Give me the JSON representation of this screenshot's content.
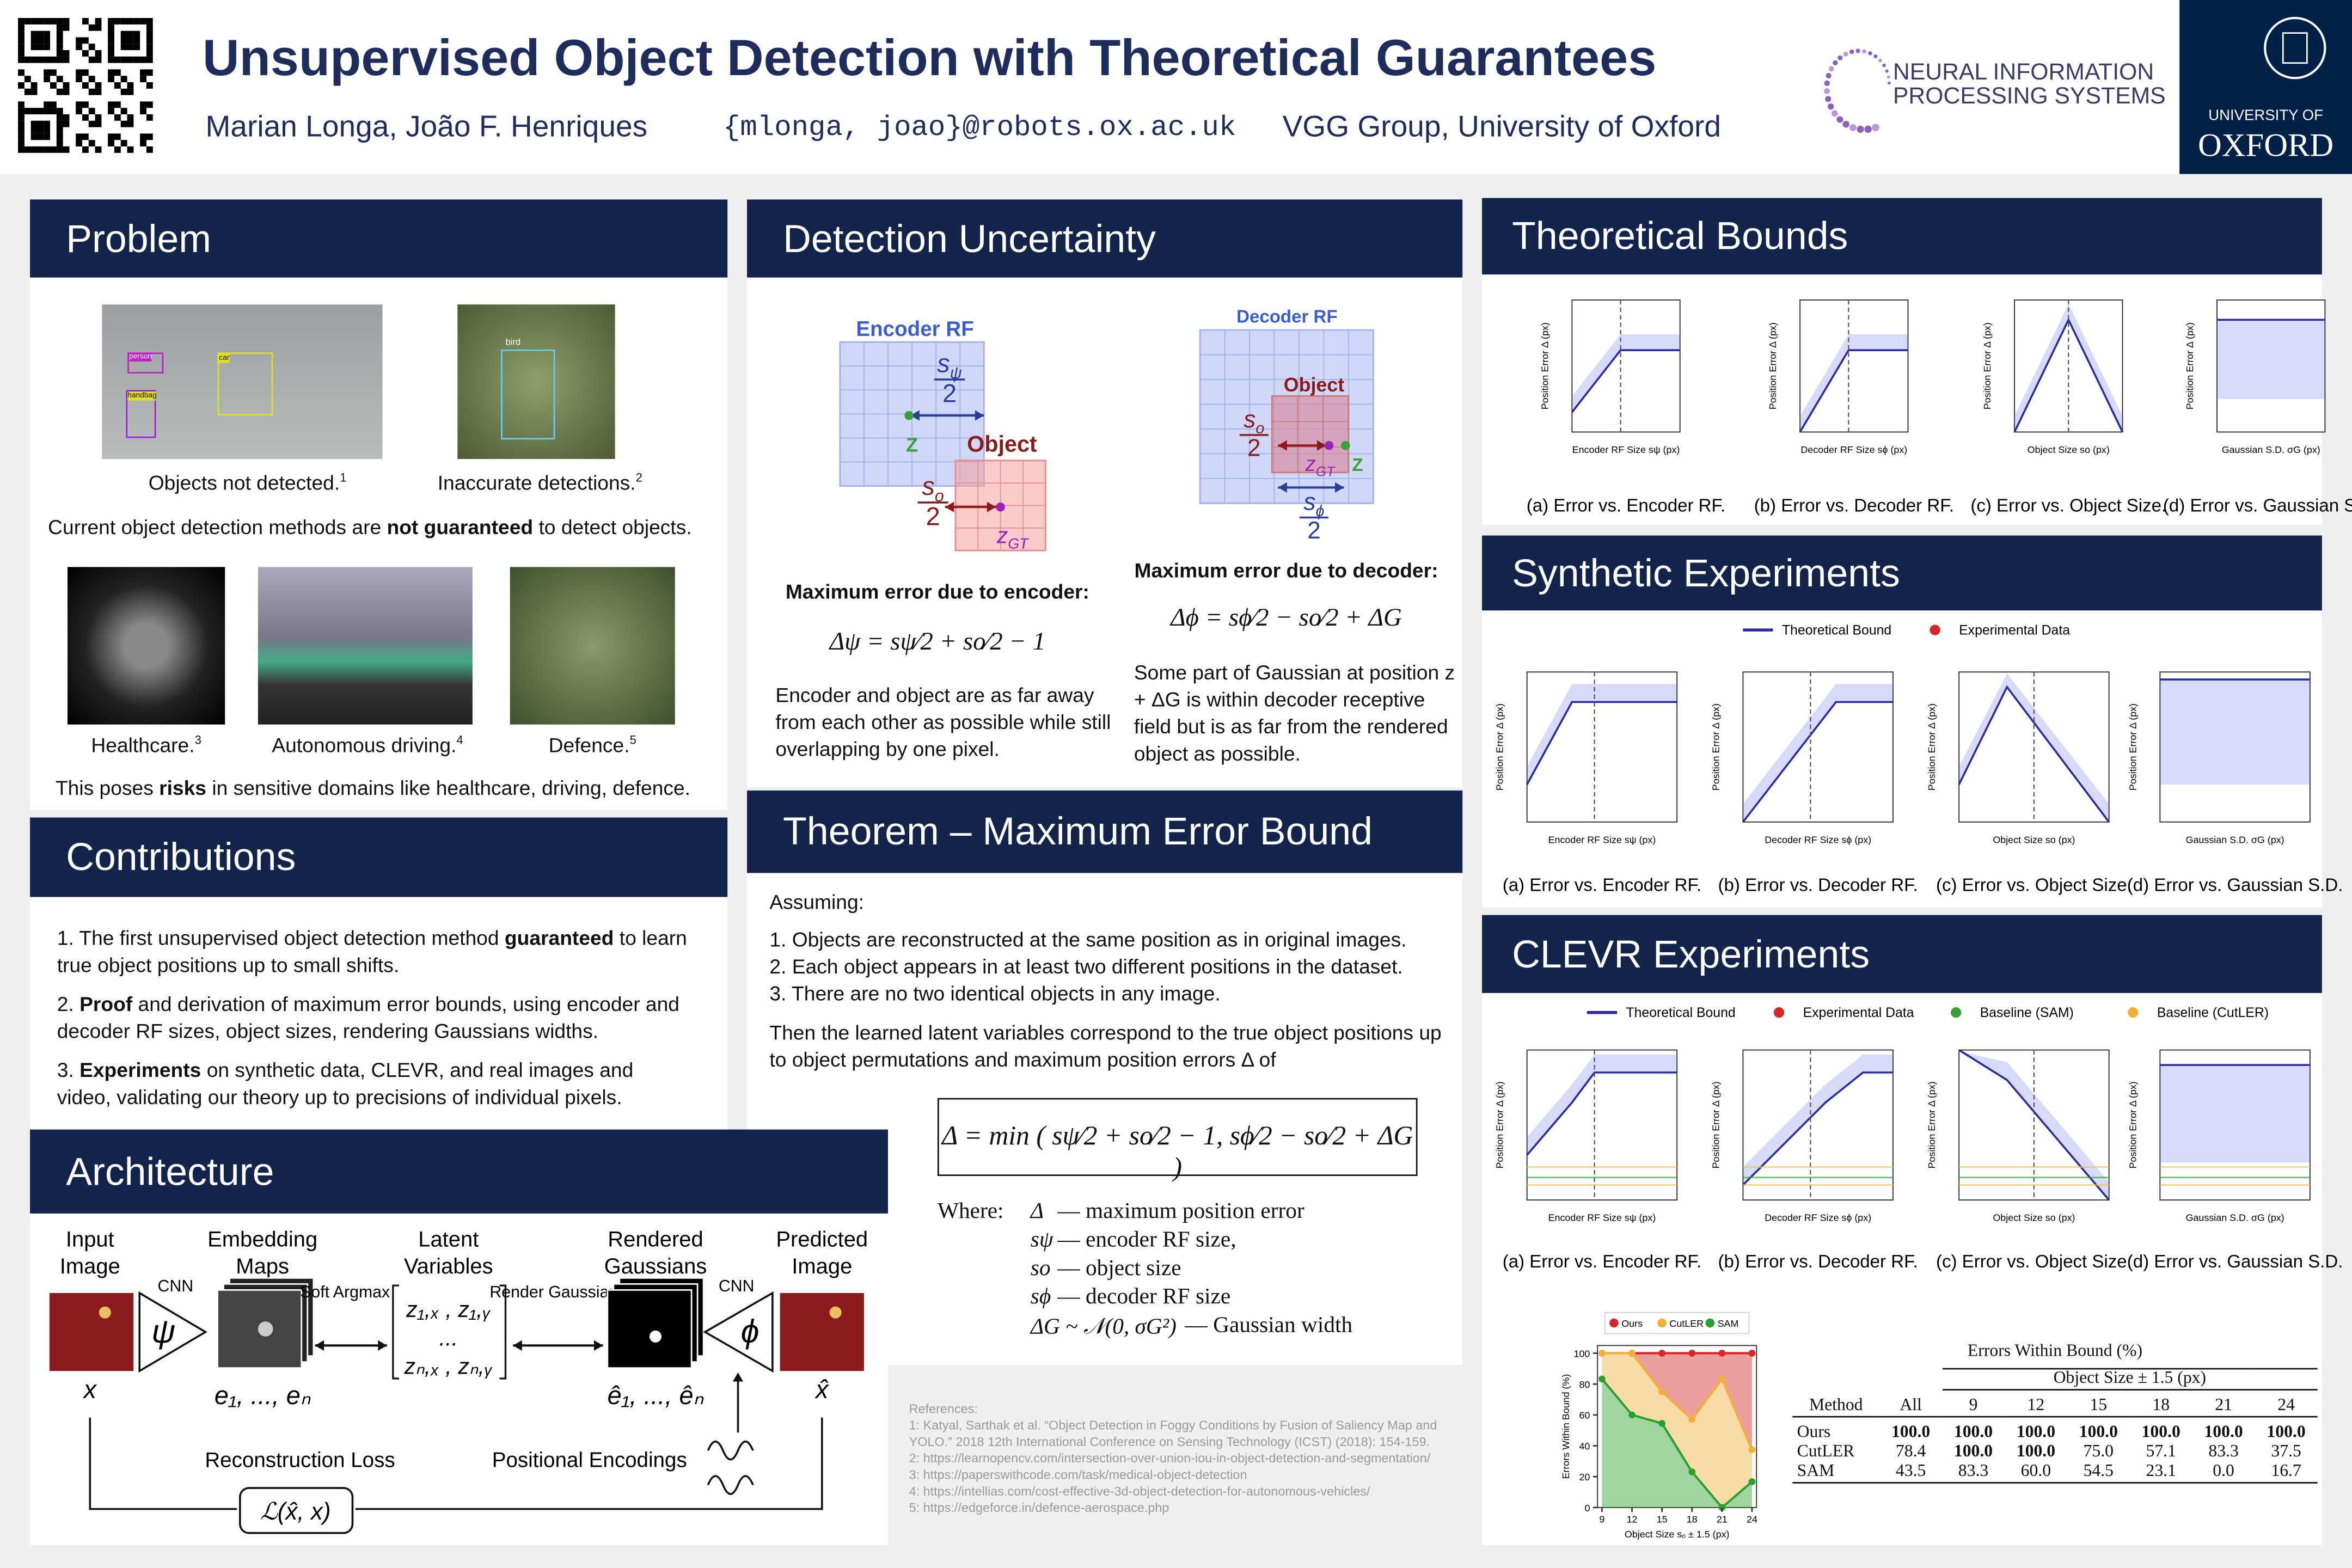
{
  "header": {
    "title": "Unsupervised Object Detection with Theoretical Guarantees",
    "authors": "Marian Longa, João F. Henriques",
    "email": "{mlonga, joao}@robots.ox.ac.uk",
    "affiliation": "VGG Group, University of Oxford",
    "neurips": [
      "NEURAL INFORMATION",
      "PROCESSING SYSTEMS"
    ],
    "oxford": [
      "UNIVERSITY OF",
      "OXFORD"
    ]
  },
  "problem": {
    "heading": "Problem",
    "figures": [
      {
        "caption": "Objects not detected.",
        "ref": "1"
      },
      {
        "caption": "Inaccurate detections.",
        "ref": "2"
      }
    ],
    "labels": [
      "person",
      "car",
      "handbag",
      "bird"
    ],
    "statement": [
      "Current object detection methods are ",
      "not guaranteed",
      " to detect objects."
    ],
    "domains": [
      {
        "caption": "Healthcare.",
        "ref": "3"
      },
      {
        "caption": "Autonomous driving.",
        "ref": "4"
      },
      {
        "caption": "Defence.",
        "ref": "5"
      }
    ],
    "risk": [
      "This poses ",
      "risks",
      " in sensitive domains like healthcare, driving, defence."
    ]
  },
  "contributions": {
    "heading": "Contributions",
    "items": [
      [
        "1. The first unsupervised object detection method ",
        "guaranteed",
        " to learn true object positions up to small shifts."
      ],
      [
        "2. ",
        "Proof",
        " and derivation of maximum error bounds, using encoder and decoder RF sizes, object sizes, rendering Gaussians widths."
      ],
      [
        "3. ",
        "Experiments",
        " on synthetic data, CLEVR, and real images and video, validating our theory up to precisions of individual pixels."
      ]
    ]
  },
  "architecture": {
    "heading": "Architecture",
    "stages": [
      "Input Image",
      "Embedding Maps",
      "Latent Variables",
      "Rendered Gaussians",
      "Predicted Image"
    ],
    "arrows": [
      "CNN",
      "Soft Argmax",
      "Render Gaussians",
      "CNN"
    ],
    "symbols": [
      "x",
      "e₁, ..., eₙ",
      "ê₁, ..., êₙ",
      "x̂"
    ],
    "latent": [
      "z₁,ₓ , z₁,ᵧ",
      "...",
      "zₙ,ₓ , zₙ,ᵧ"
    ],
    "encoder": "ψ",
    "decoder": "ϕ",
    "loss_label": "Reconstruction Loss",
    "pos_enc": "Positional Encodings",
    "loss": "ℒ(x̂, x)"
  },
  "detection": {
    "heading": "Detection Uncertainty",
    "encoder_fig": {
      "title": "Encoder RF",
      "rf": {
        "base": "s",
        "sub": "ψ",
        "den": "2"
      },
      "z": "Z",
      "object": "Object",
      "obj": {
        "base": "s",
        "sub": "o",
        "den": "2"
      },
      "zgt": {
        "base": "z",
        "sub": "GT"
      }
    },
    "decoder_fig": {
      "title": "Decoder RF",
      "rf": {
        "base": "s",
        "sub": "ϕ",
        "den": "2"
      },
      "z": "Z",
      "object": "Object",
      "obj": {
        "base": "s",
        "sub": "o",
        "den": "2"
      },
      "zgt": {
        "base": "z",
        "sub": "GT"
      }
    },
    "encoder_title": "Maximum error due to encoder:",
    "encoder_formula": "Δψ = sψ⁄2 + so⁄2 − 1",
    "encoder_text": "Encoder and object are as far away from each other as possible while still overlapping by one pixel.",
    "decoder_title": "Maximum error due to decoder:",
    "decoder_formula": "Δϕ = sϕ⁄2 − so⁄2 + ΔG",
    "decoder_text": "Some part of Gaussian at position z + ΔG is within decoder receptive field but is as far from the rendered object as possible."
  },
  "theorem": {
    "heading": "Theorem – Maximum Error Bound",
    "assuming": "Assuming:",
    "assumptions": [
      "1. Objects are reconstructed at the same position as in original images.",
      "2. Each object appears in at least two different positions in the dataset.",
      "3. There are no two identical objects in any image."
    ],
    "conclusion": "Then the learned latent variables correspond to the true object positions up to object permutations and maximum position errors Δ of",
    "formula": "Δ = min ( sψ⁄2 + so⁄2 − 1,  sϕ⁄2 − so⁄2 + ΔG )",
    "where": "Where:",
    "symbols": [
      [
        "Δ",
        "— maximum position error"
      ],
      [
        "sψ",
        "— encoder RF size,"
      ],
      [
        "so",
        "— object size"
      ],
      [
        "sϕ",
        "— decoder RF size"
      ],
      [
        "ΔG ~ 𝒩(0, σG²)",
        "— Gaussian width"
      ]
    ]
  },
  "references": [
    "References:",
    "1: Katyal, Sarthak et al. “Object Detection in Foggy Conditions by Fusion of Saliency Map and YOLO.” 2018 12th International Conference on Sensing Technology (ICST) (2018): 154-159.",
    "2: https://learnopencv.com/intersection-over-union-iou-in-object-detection-and-segmentation/",
    "3: https://paperswithcode.com/task/medical-object-detection",
    "4: https://intellias.com/cost-effective-3d-object-detection-for-autonomous-vehicles/",
    "5: https://edgeforce.in/defence-aerospace.php"
  ],
  "axes": {
    "ylabel": "Position Error Δ (px)",
    "xlabels": [
      "Encoder RF Size sψ (px)",
      "Decoder RF Size sϕ (px)",
      "Object Size so (px)",
      "Gaussian S.D. σG (px)"
    ]
  },
  "bounds": {
    "heading": "Theoretical Bounds",
    "captions": [
      "(a) Error vs. Encoder RF.",
      "(b) Error vs. Decoder RF.",
      "(c) Error vs. Object Size.",
      "(d) Error vs. Gaussian S.D."
    ]
  },
  "synthetic": {
    "heading": "Synthetic Experiments",
    "legend": [
      "Theoretical Bound",
      "Experimental Data"
    ],
    "captions": [
      "(a) Error vs. Encoder RF.",
      "(b) Error vs. Decoder RF.",
      "(c) Error vs. Object Size.",
      "(d) Error vs. Gaussian S.D."
    ]
  },
  "clevr": {
    "heading": "CLEVR Experiments",
    "legend": [
      "Theoretical Bound",
      "Experimental Data",
      "Baseline (SAM)",
      "Baseline (CutLER)"
    ],
    "captions": [
      "(a) Error vs. Encoder RF.",
      "(b) Error vs. Decoder RF.",
      "(c) Error vs. Object Size.",
      "(d) Error vs. Gaussian S.D."
    ]
  },
  "table": {
    "title": "Errors Within Bound (%)",
    "group": "Object Size ± 1.5 (px)",
    "columns": [
      "Method",
      "All",
      "9",
      "12",
      "15",
      "18",
      "21",
      "24"
    ],
    "rows": [
      [
        "Ours",
        "100.0",
        "100.0",
        "100.0",
        "100.0",
        "100.0",
        "100.0",
        "100.0"
      ],
      [
        "CutLER",
        "78.4",
        "100.0",
        "100.0",
        "75.0",
        "57.1",
        "83.3",
        "37.5"
      ],
      [
        "SAM",
        "43.5",
        "83.3",
        "60.0",
        "54.5",
        "23.1",
        "0.0",
        "16.7"
      ]
    ]
  },
  "chart_data": {
    "type": "line",
    "xlabel": "Object Size sₒ ± 1.5 (px)",
    "ylabel": "Errors Within Bound (%)",
    "x": [
      9,
      12,
      15,
      18,
      21,
      24
    ],
    "xlim": [
      9,
      24
    ],
    "ylim": [
      0,
      105
    ],
    "xticks": [
      9,
      12,
      15,
      18,
      21,
      24
    ],
    "yticks": [
      0,
      20,
      40,
      60,
      80,
      100
    ],
    "legend": "top",
    "series": [
      {
        "name": "Ours",
        "color": "#d62728",
        "values": [
          100,
          100,
          100,
          100,
          100,
          100
        ]
      },
      {
        "name": "CutLER",
        "color": "#f0b03a",
        "values": [
          100,
          100,
          75,
          57.1,
          83.3,
          37.5
        ]
      },
      {
        "name": "SAM",
        "color": "#2ca02c",
        "values": [
          83.3,
          60,
          54.5,
          23.1,
          0,
          16.7
        ]
      }
    ]
  }
}
